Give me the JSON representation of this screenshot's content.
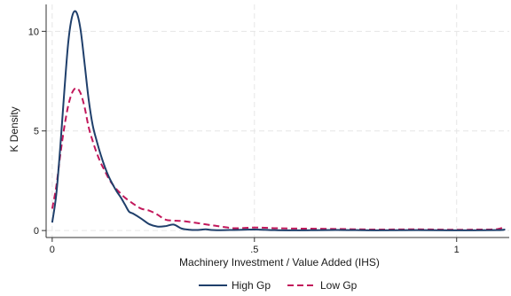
{
  "chart_data": {
    "type": "line",
    "title": "",
    "xlabel": "Machinery Investment / Value Added (IHS)",
    "ylabel": "K Density",
    "xlim": [
      -0.015,
      1.13
    ],
    "ylim": [
      -0.35,
      11.35
    ],
    "x_ticks": [
      0,
      0.5,
      1
    ],
    "x_tick_labels": [
      "0",
      ".5",
      "1"
    ],
    "y_ticks": [
      0,
      5,
      10
    ],
    "y_tick_labels": [
      "0",
      "5",
      "10"
    ],
    "grid": true,
    "legend_position": "bottom-center",
    "series": [
      {
        "name": "High Gp",
        "color": "#1f3f6b",
        "dash": "solid",
        "x": [
          0,
          0.01,
          0.02,
          0.03,
          0.04,
          0.05,
          0.06,
          0.07,
          0.08,
          0.09,
          0.1,
          0.11,
          0.12,
          0.13,
          0.14,
          0.15,
          0.16,
          0.17,
          0.18,
          0.19,
          0.2,
          0.22,
          0.24,
          0.26,
          0.28,
          0.3,
          0.32,
          0.34,
          0.36,
          0.38,
          0.4,
          0.45,
          0.5,
          0.55,
          0.6,
          0.7,
          0.8,
          0.9,
          1.0,
          1.1,
          1.12
        ],
        "y": [
          0.4,
          1.8,
          4.2,
          7.0,
          9.5,
          10.8,
          10.95,
          10.1,
          8.4,
          6.6,
          5.3,
          4.5,
          3.8,
          3.2,
          2.7,
          2.3,
          1.95,
          1.65,
          1.3,
          0.95,
          0.85,
          0.6,
          0.32,
          0.2,
          0.22,
          0.3,
          0.1,
          0.04,
          0.03,
          0.06,
          0.02,
          0.03,
          0.05,
          0.02,
          0.01,
          0.03,
          0.01,
          0.02,
          0.01,
          0.02,
          0.05
        ]
      },
      {
        "name": "Low Gp",
        "color": "#c2185b",
        "dash": "dashed",
        "x": [
          0,
          0.01,
          0.02,
          0.03,
          0.04,
          0.05,
          0.06,
          0.07,
          0.08,
          0.09,
          0.1,
          0.11,
          0.12,
          0.13,
          0.14,
          0.15,
          0.16,
          0.17,
          0.18,
          0.2,
          0.22,
          0.24,
          0.26,
          0.28,
          0.3,
          0.32,
          0.35,
          0.4,
          0.45,
          0.5,
          0.55,
          0.6,
          0.7,
          0.8,
          0.9,
          1.0,
          1.05,
          1.1,
          1.12
        ],
        "y": [
          1.1,
          2.2,
          3.8,
          5.2,
          6.3,
          6.95,
          7.15,
          6.9,
          6.2,
          5.2,
          4.5,
          3.9,
          3.4,
          3.0,
          2.6,
          2.3,
          2.05,
          1.85,
          1.65,
          1.35,
          1.1,
          1.0,
          0.8,
          0.55,
          0.5,
          0.48,
          0.4,
          0.25,
          0.12,
          0.15,
          0.12,
          0.1,
          0.08,
          0.05,
          0.06,
          0.04,
          0.05,
          0.07,
          0.2
        ]
      }
    ]
  }
}
